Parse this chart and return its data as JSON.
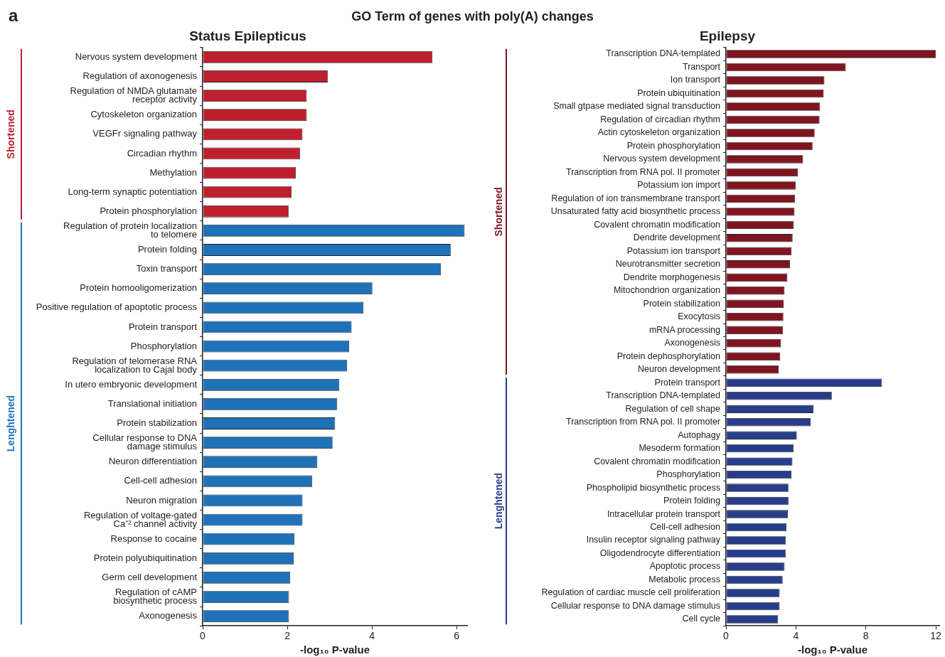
{
  "chart_data": [
    {
      "type": "bar",
      "orientation": "horizontal",
      "title": "Status Epilepticus",
      "xlabel": "-log₁₀ P-value",
      "annotations": [
        "a",
        "GO Term of genes with poly(A) changes"
      ],
      "categories": [
        "Nervous system development",
        "Regulation of axonogenesis",
        "Regulation of NMDA glutamate\nreceptor activity",
        "Cytoskeleton organization",
        "VEGFr signaling pathway",
        "Circadian rhythm",
        "Methylation",
        "Long-term synaptic potentiation",
        "Protein phosphorylation",
        "Regulation of protein localization\nto telomere",
        "Protein folding",
        "Toxin transport",
        "Protein homooligomerization",
        "Positive regulation of apoptotic process",
        "Protein transport",
        "Phosphorylation",
        "Regulation of telomerase RNA\nlocalization to Cajal body",
        "In utero embryonic development",
        "Translational initiation",
        "Protein stabilization",
        "Cellular response to DNA\ndamage stimulus",
        "Neuron differentiation",
        "Cell-cell adhesion",
        "Neuron migration",
        "Regulation of voltage-gated\nCa⁺² channel activity",
        "Response to cocaine",
        "Protein polyubiquitination",
        "Germ cell development",
        "Regulation of cAMP\nbiosynthetic process",
        "Axonogenesis"
      ],
      "series": [
        {
          "name": "Shortened",
          "color": "#be202e",
          "values": [
            5.43,
            2.96,
            2.46,
            2.46,
            2.36,
            2.3,
            2.2,
            2.1,
            2.03,
            null,
            null,
            null,
            null,
            null,
            null,
            null,
            null,
            null,
            null,
            null,
            null,
            null,
            null,
            null,
            null,
            null,
            null,
            null,
            null,
            null
          ]
        },
        {
          "name": "Lenghtened",
          "color": "#1f72b8",
          "values": [
            null,
            null,
            null,
            null,
            null,
            null,
            null,
            null,
            null,
            6.19,
            5.86,
            5.63,
            4.01,
            3.8,
            3.52,
            3.46,
            3.41,
            3.23,
            3.18,
            3.13,
            3.07,
            2.71,
            2.59,
            2.36,
            2.36,
            2.17,
            2.15,
            2.07,
            2.04,
            2.04
          ]
        }
      ],
      "xlim": [
        0,
        6.25
      ],
      "xticks": [
        0,
        2,
        4,
        6
      ],
      "grid": false
    },
    {
      "type": "bar",
      "orientation": "horizontal",
      "title": "Epilepsy",
      "xlabel": "-log₁₀ P-value",
      "categories": [
        "Transcription DNA-templated",
        "Transport",
        "Ion transport",
        "Protein ubiquitination",
        "Small gtpase mediated signal transduction",
        "Regulation of circadian rhythm",
        "Actin cytoskeleton organization",
        "Protein phosphorylation",
        "Nervous system development",
        "Transcription from RNA pol. II promoter",
        "Potassium ion import",
        "Regulation of ion transmembrane transport",
        "Unsaturated fatty acid biosynthetic process",
        "Covalent chromatin modification",
        "Dendrite development",
        "Potassium ion transport",
        "Neurotransmitter secretion",
        "Dendrite morphogenesis",
        "Mitochondrion organization",
        "Protein stabilization",
        "Exocytosis",
        "mRNA processing",
        "Axonogenesis",
        "Protein dephosphorylation",
        "Neuron development",
        "Protein transport",
        "Transcription DNA-templated",
        "Regulation of cell shape",
        "Transcription from RNA pol. II promoter",
        "Autophagy",
        "Mesoderm formation",
        "Covalent chromatin modification",
        "Phosphorylation",
        "Phospholipid biosynthetic process",
        "Protein folding",
        "Intracellular protein transport",
        "Cell-cell adhesion",
        "Insulin receptor signaling pathway",
        "Oligodendrocyte differentiation",
        "Apoptotic process",
        "Metabolic process",
        "Regulation of cardiac muscle cell proliferation",
        "Cellular response to DNA damage stimulus",
        "Cell cycle"
      ],
      "series": [
        {
          "name": "Shortened",
          "color": "#7f1520",
          "values": [
            12,
            6.85,
            5.63,
            5.59,
            5.38,
            5.35,
            5.07,
            4.95,
            4.41,
            4.11,
            4.0,
            3.94,
            3.92,
            3.88,
            3.81,
            3.75,
            3.66,
            3.51,
            3.35,
            3.31,
            3.28,
            3.25,
            3.15,
            3.09,
            3.01,
            null,
            null,
            null,
            null,
            null,
            null,
            null,
            null,
            null,
            null,
            null,
            null,
            null,
            null,
            null,
            null,
            null,
            null,
            null
          ]
        },
        {
          "name": "Lenghtened",
          "color": "#283d8a",
          "values": [
            null,
            null,
            null,
            null,
            null,
            null,
            null,
            null,
            null,
            null,
            null,
            null,
            null,
            null,
            null,
            null,
            null,
            null,
            null,
            null,
            null,
            null,
            null,
            null,
            null,
            8.92,
            6.05,
            5.01,
            4.84,
            4.05,
            3.86,
            3.8,
            3.74,
            3.57,
            3.57,
            3.54,
            3.46,
            3.43,
            3.41,
            3.35,
            3.24,
            3.07,
            3.07,
            2.98
          ]
        }
      ],
      "xlim": [
        0,
        12.2
      ],
      "xticks": [
        0,
        4,
        8,
        12
      ],
      "grid": false
    }
  ]
}
